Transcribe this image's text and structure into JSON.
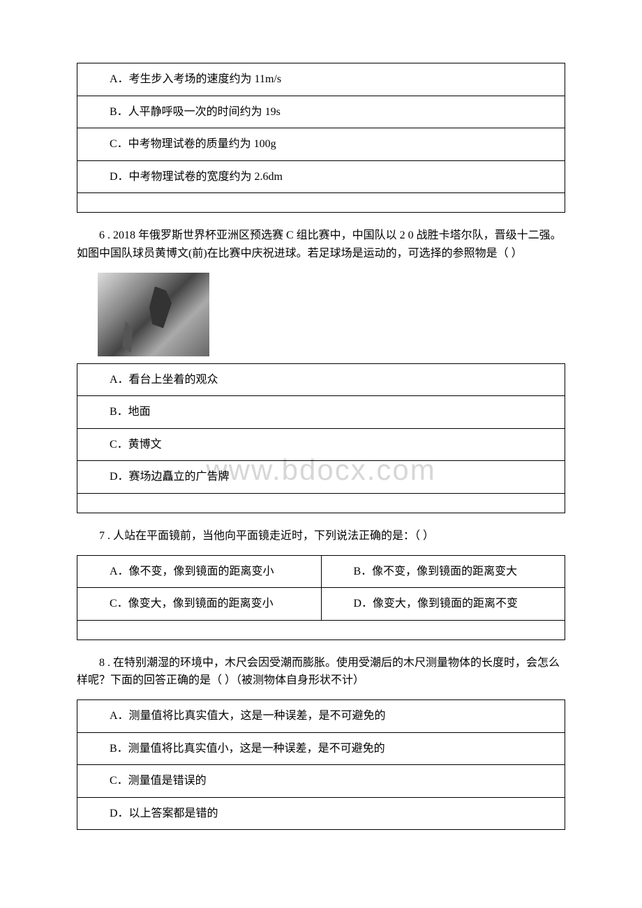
{
  "watermark": "www.bdocx.com",
  "q5": {
    "options": {
      "a": "A．考生步入考场的速度约为 11m/s",
      "b": "B．人平静呼吸一次的时间约为 19s",
      "c": "C．中考物理试卷的质量约为 100g",
      "d": "D．中考物理试卷的宽度约为 2.6dm"
    }
  },
  "q6": {
    "text": "6 . 2018 年俄罗斯世界杯亚洲区预选赛 C 组比赛中，中国队以 2 0 战胜卡塔尔队，晋级十二强。如图中国队球员黄博文(前)在比赛中庆祝进球。若足球场是运动的，可选择的参照物是（ ）",
    "options": {
      "a": "A．看台上坐着的观众",
      "b": "B．地面",
      "c": "C．黄博文",
      "d": "D．赛场边矗立的广告牌"
    }
  },
  "q7": {
    "text": "7 . 人站在平面镜前，当他向平面镜走近时，下列说法正确的是：（ ）",
    "options": {
      "a": "A．像不变，像到镜面的距离变小",
      "b": "B．像不变，像到镜面的距离变大",
      "c": "C．像变大，像到镜面的距离变小",
      "d": "D．像变大，像到镜面的距离不变"
    }
  },
  "q8": {
    "text": "8 . 在特别潮湿的环境中，木尺会因受潮而膨胀。使用受潮后的木尺测量物体的长度时，会怎么样呢？下面的回答正确的是（ ）（被测物体自身形状不计）",
    "options": {
      "a": "A．测量值将比真实值大，这是一种误差，是不可避免的",
      "b": "B．测量值将比真实值小，这是一种误差，是不可避免的",
      "c": "C．测量值是错误的",
      "d": "D．以上答案都是错的"
    }
  }
}
